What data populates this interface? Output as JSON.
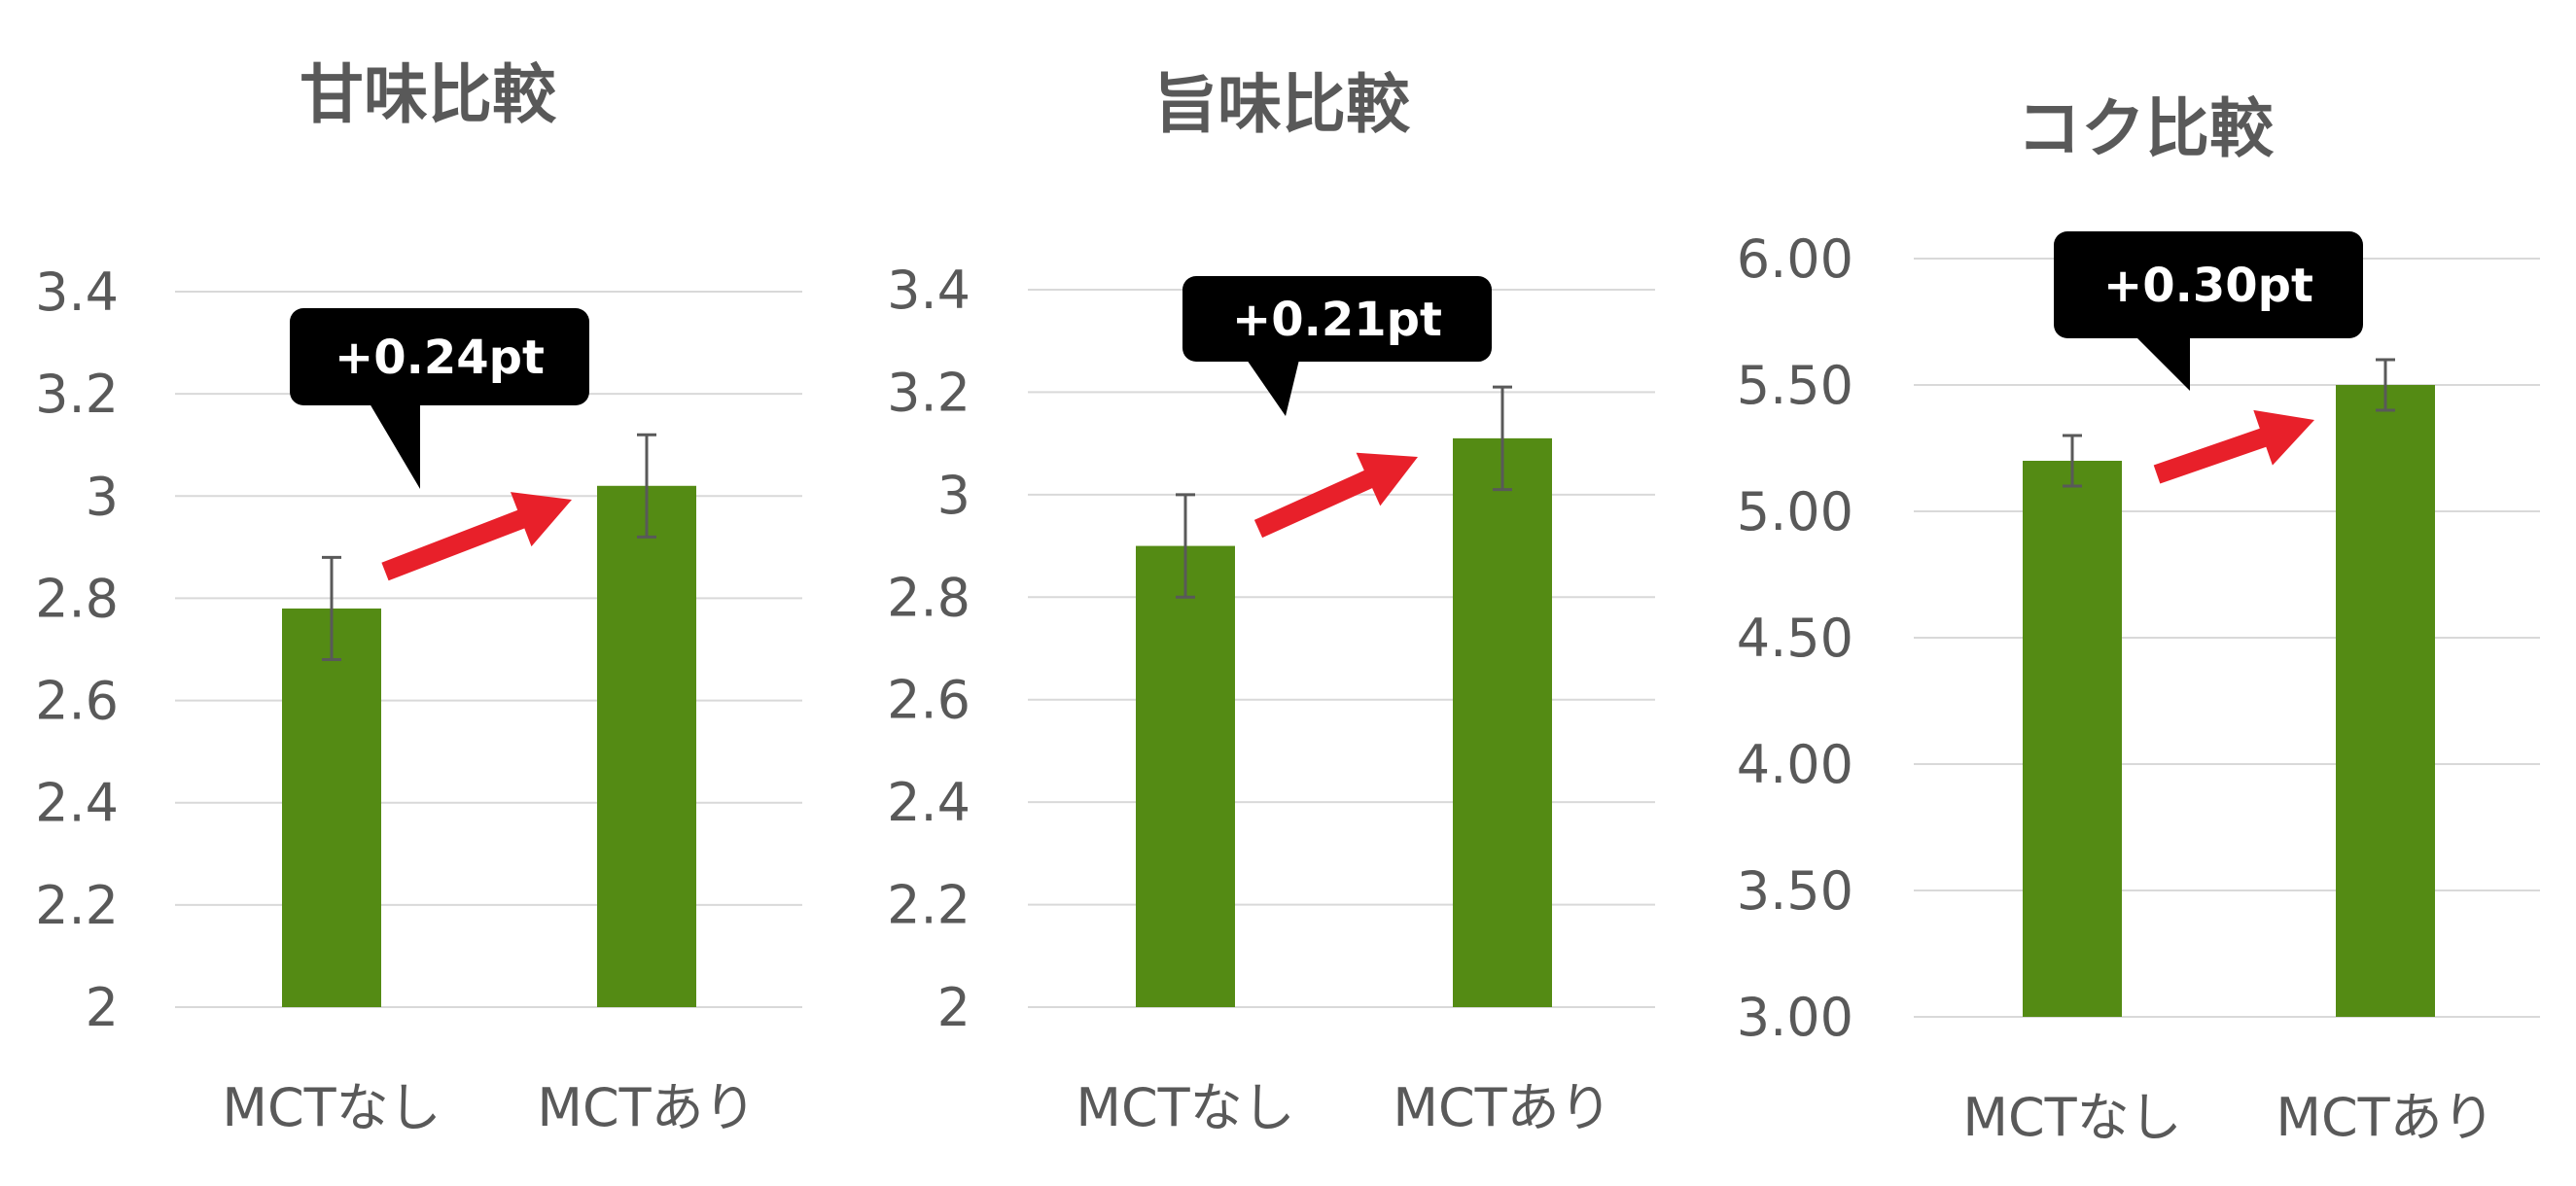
{
  "chart_data": [
    {
      "type": "bar",
      "title": "甘味比較",
      "categories": [
        "MCTなし",
        "MCTあり"
      ],
      "values": [
        2.78,
        3.02
      ],
      "errors": [
        0.1,
        0.1
      ],
      "ylim": [
        2,
        3.4
      ],
      "yticks": [
        "2",
        "2.2",
        "2.4",
        "2.6",
        "2.8",
        "3",
        "3.2",
        "3.4"
      ],
      "yticks_values": [
        2,
        2.2,
        2.4,
        2.6,
        2.8,
        3,
        3.2,
        3.4
      ],
      "callout": "+0.24pt",
      "grid": true,
      "bar_color": "#548B14"
    },
    {
      "type": "bar",
      "title": "旨味比較",
      "categories": [
        "MCTなし",
        "MCTあり"
      ],
      "values": [
        2.9,
        3.11
      ],
      "errors": [
        0.1,
        0.1
      ],
      "ylim": [
        2,
        3.4
      ],
      "yticks": [
        "2",
        "2.2",
        "2.4",
        "2.6",
        "2.8",
        "3",
        "3.2",
        "3.4"
      ],
      "yticks_values": [
        2,
        2.2,
        2.4,
        2.6,
        2.8,
        3,
        3.2,
        3.4
      ],
      "callout": "+0.21pt",
      "grid": true,
      "bar_color": "#548B14"
    },
    {
      "type": "bar",
      "title": "コク比較",
      "categories": [
        "MCTなし",
        "MCTあり"
      ],
      "values": [
        5.2,
        5.5
      ],
      "errors": [
        0.1,
        0.1
      ],
      "ylim": [
        3,
        6
      ],
      "yticks": [
        "3.00",
        "3.50",
        "4.00",
        "4.50",
        "5.00",
        "5.50",
        "6.00"
      ],
      "yticks_values": [
        3,
        3.5,
        4,
        4.5,
        5,
        5.5,
        6
      ],
      "callout": "+0.30pt",
      "grid": true,
      "bar_color": "#548B14"
    }
  ],
  "colors": {
    "arrow": "#E8202A",
    "callout_bg": "#000000",
    "gridline": "#D9D9D9",
    "text": "#595959"
  }
}
